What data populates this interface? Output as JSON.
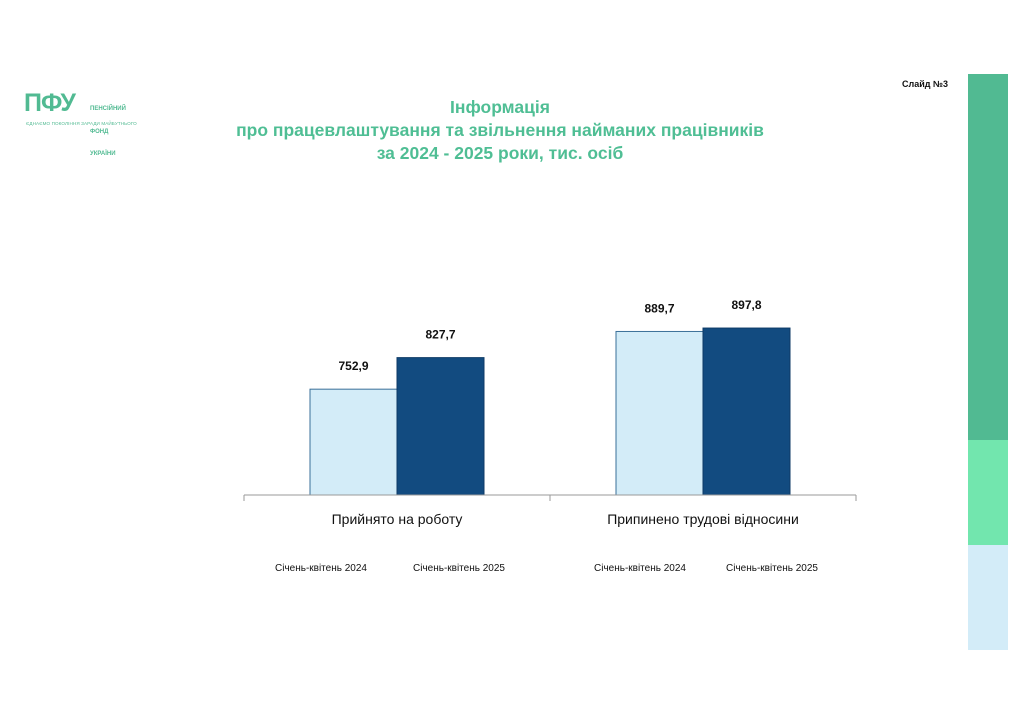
{
  "slide": {
    "label": "Слайд №3"
  },
  "logo": {
    "mark": "ПФУ",
    "text_lines": [
      "ПЕНСІЙНИЙ",
      "ФОНД",
      "УКРАЇНИ"
    ],
    "tagline": "ЄДНАЄМО ПОКОЛІННЯ ЗАРАДИ МАЙБУТНЬОГО"
  },
  "colors": {
    "accent": "#51ba92",
    "accent_light": "#72e6ae",
    "series_2024": "#d3ecf8",
    "series_2025": "#124b80",
    "stripe_bottom": "#d3ecf8"
  },
  "chart_data": {
    "type": "bar",
    "title": [
      "Інформація",
      "про працевлаштування та звільнення найманих працівників",
      "за 2024 - 2025  роки,  тис. осіб"
    ],
    "categories": [
      "Прийнято на роботу",
      "Припинено трудові відносини"
    ],
    "series": [
      {
        "name": "Січень-квітень 2024",
        "values": [
          752.9,
          889.7
        ],
        "labels": [
          "752,9",
          "889,7"
        ]
      },
      {
        "name": "Січень-квітень 2025",
        "values": [
          827.7,
          897.8
        ],
        "labels": [
          "827,7",
          "897,8"
        ]
      }
    ],
    "legend_labels": [
      "Січень-квітень 2024",
      "Січень-квітень 2025",
      "Січень-квітень 2024",
      "Січень-квітень 2025"
    ],
    "ylim": [
      600,
      1000
    ],
    "grid": false,
    "legend": "below each category"
  }
}
